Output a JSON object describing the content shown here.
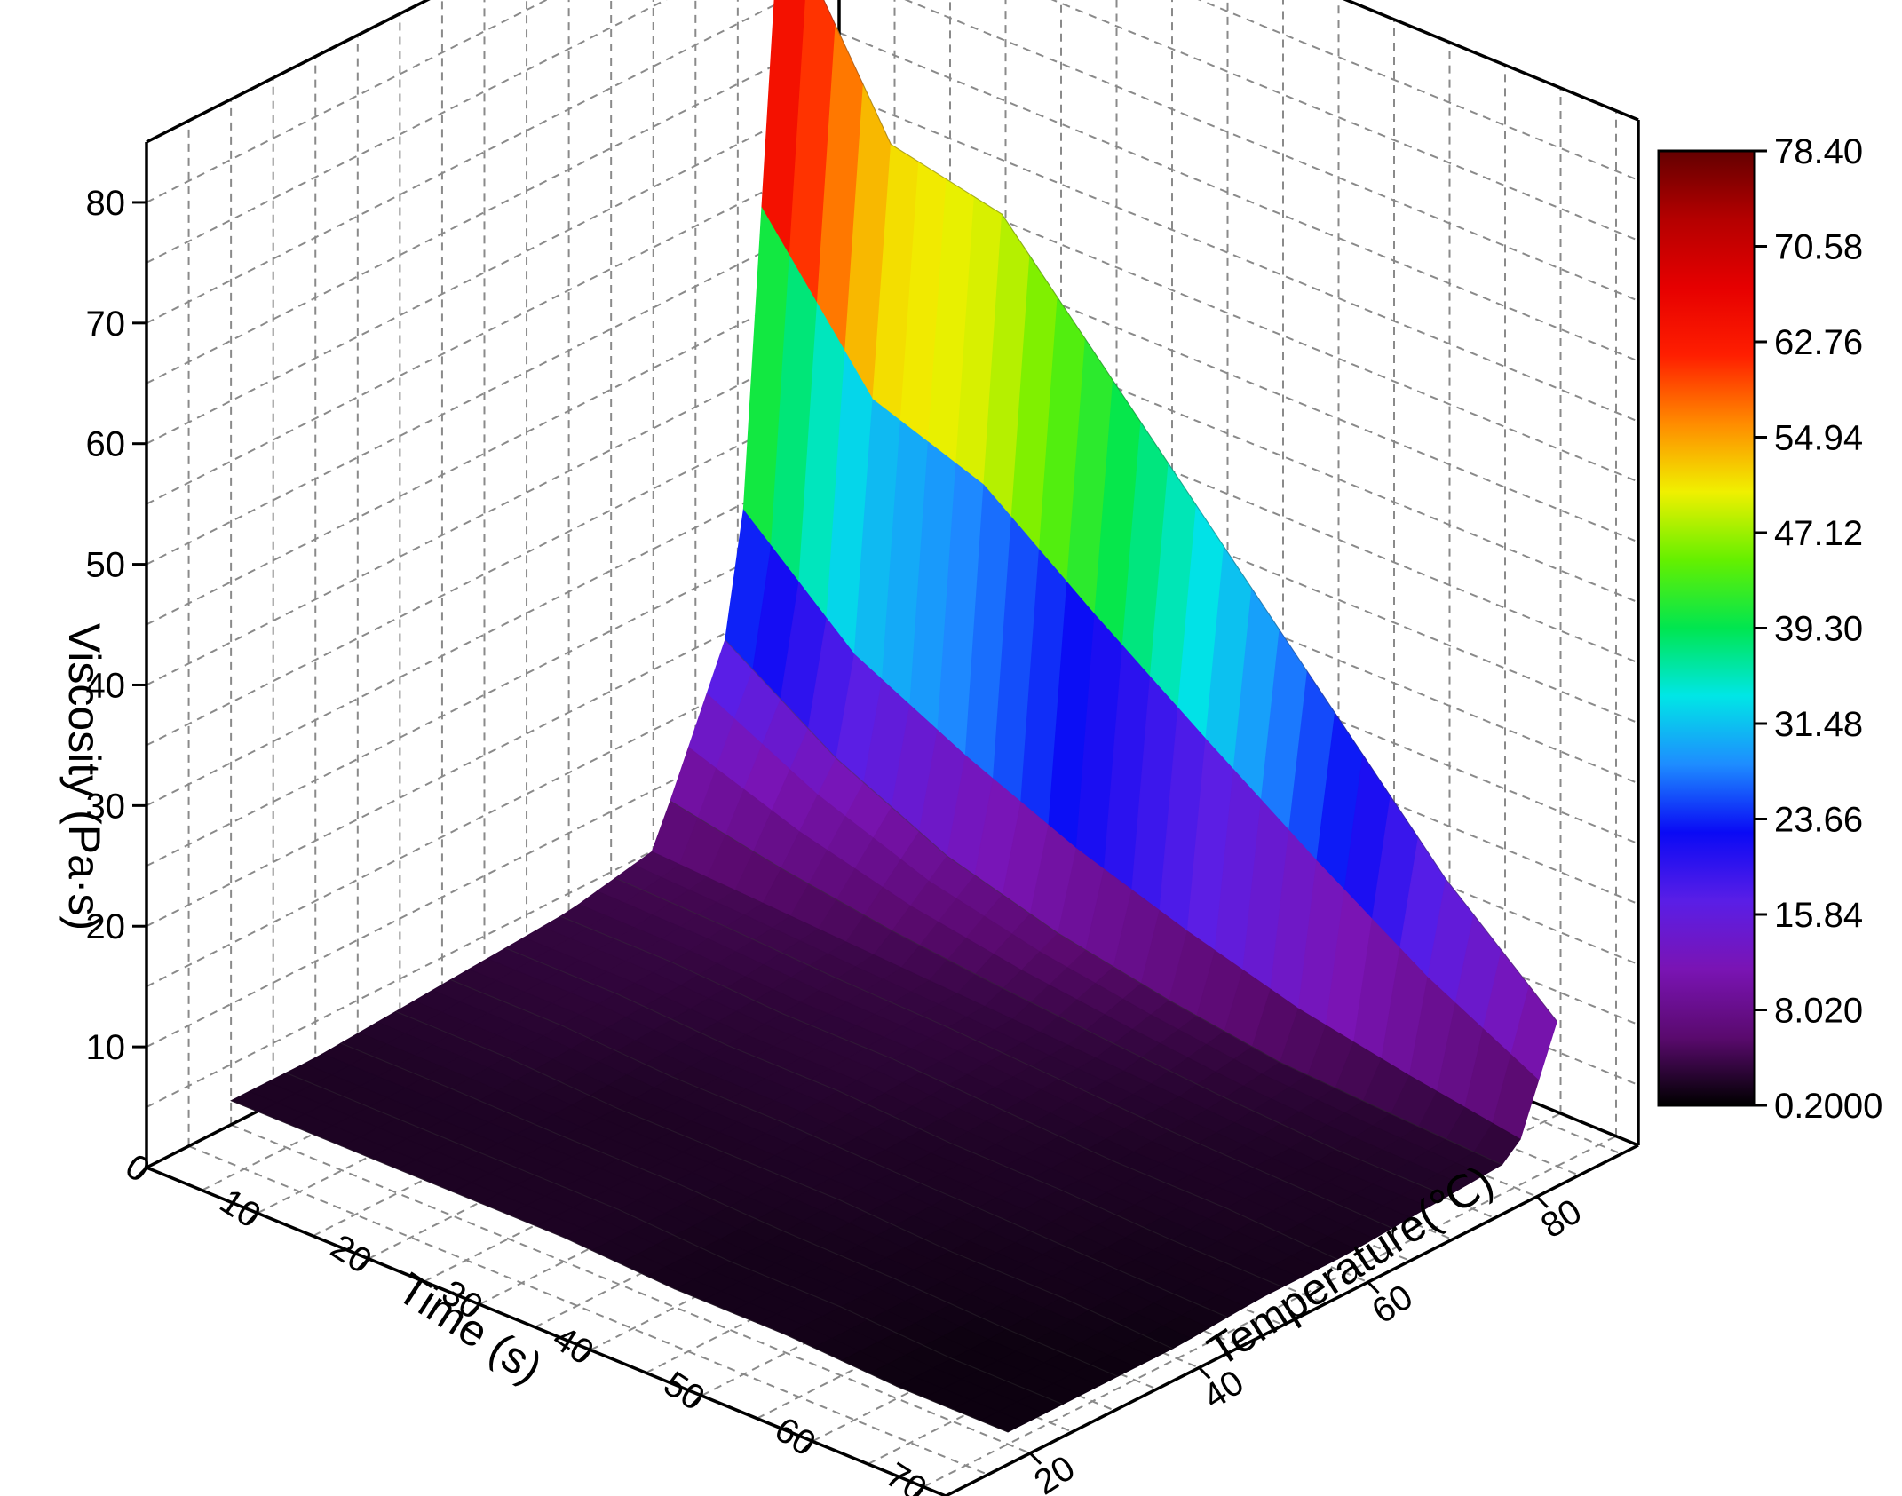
{
  "chart_data": {
    "type": "surface",
    "z_axis": {
      "label": "Viscosity (Pa·s)",
      "ticks": [
        "10",
        "20",
        "30",
        "40",
        "50",
        "60",
        "70",
        "80"
      ],
      "range": [
        0,
        85
      ]
    },
    "time_axis": {
      "label": "Time (s)",
      "ticks": [
        "0",
        "10",
        "20",
        "30",
        "40",
        "50",
        "60",
        "70"
      ],
      "range": [
        0,
        72
      ]
    },
    "temperature_axis": {
      "label": "Temperature(℃)",
      "ticks": [
        "20",
        "40",
        "60",
        "80"
      ],
      "range": [
        10,
        92
      ]
    },
    "colorbar": {
      "ticks": [
        "78.40",
        "70.58",
        "62.76",
        "54.94",
        "47.12",
        "39.30",
        "31.48",
        "23.66",
        "15.84",
        "8.020",
        "0.2000"
      ],
      "min": 0.2,
      "max": 78.4,
      "colors": [
        "#000000",
        "#5a0a6e",
        "#7a14b4",
        "#5a1ee6",
        "#0a0af5",
        "#1e8cff",
        "#00e6e6",
        "#00e650",
        "#64f000",
        "#f0f000",
        "#ff8c00",
        "#ff1e00",
        "#e60000",
        "#b40000",
        "#640000"
      ]
    },
    "grid": true,
    "surface": {
      "time": [
        0,
        10,
        20,
        30,
        40,
        50,
        60,
        70
      ],
      "temperature": [
        20,
        30,
        40,
        50,
        60,
        70,
        80,
        85
      ],
      "viscosity": [
        [
          2,
          2,
          2.5,
          3,
          3.5,
          5,
          22,
          78
        ],
        [
          2,
          2,
          2.5,
          3,
          3.5,
          4.5,
          15,
          62
        ],
        [
          2,
          2,
          2,
          2.5,
          3,
          4,
          10,
          60
        ],
        [
          2,
          2,
          2,
          2.5,
          3,
          3.5,
          7,
          50
        ],
        [
          1.5,
          1.5,
          2,
          2,
          2.5,
          3,
          5,
          40
        ],
        [
          1.5,
          1.5,
          1.5,
          2,
          2,
          2.5,
          3.5,
          30
        ],
        [
          1,
          1,
          1.5,
          1.5,
          2,
          2,
          3,
          20
        ],
        [
          1,
          1,
          1,
          1.5,
          1.5,
          2,
          2.5,
          12
        ]
      ]
    }
  }
}
